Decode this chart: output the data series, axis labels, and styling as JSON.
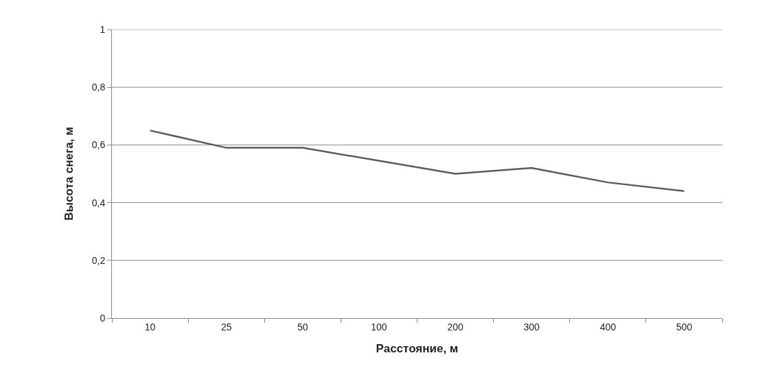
{
  "chart_data": {
    "type": "line",
    "xlabel": "Расстояние, м",
    "ylabel": "Высота снега, м",
    "categories": [
      "10",
      "25",
      "50",
      "100",
      "200",
      "300",
      "400",
      "500"
    ],
    "series": [
      {
        "color": "#5a5a5a",
        "values": [
          0.65,
          0.59,
          0.59,
          0.545,
          0.5,
          0.52,
          0.47,
          0.44
        ]
      }
    ],
    "ylim": [
      0,
      1
    ],
    "yticks": [
      {
        "value": 0,
        "label": "0"
      },
      {
        "value": 0.2,
        "label": "0,2"
      },
      {
        "value": 0.4,
        "label": "0,4"
      },
      {
        "value": 0.6,
        "label": "0,6"
      },
      {
        "value": 0.8,
        "label": "0,8"
      },
      {
        "value": 1,
        "label": "1"
      }
    ],
    "grid": "y",
    "marker": "none",
    "line_style": "solid"
  }
}
